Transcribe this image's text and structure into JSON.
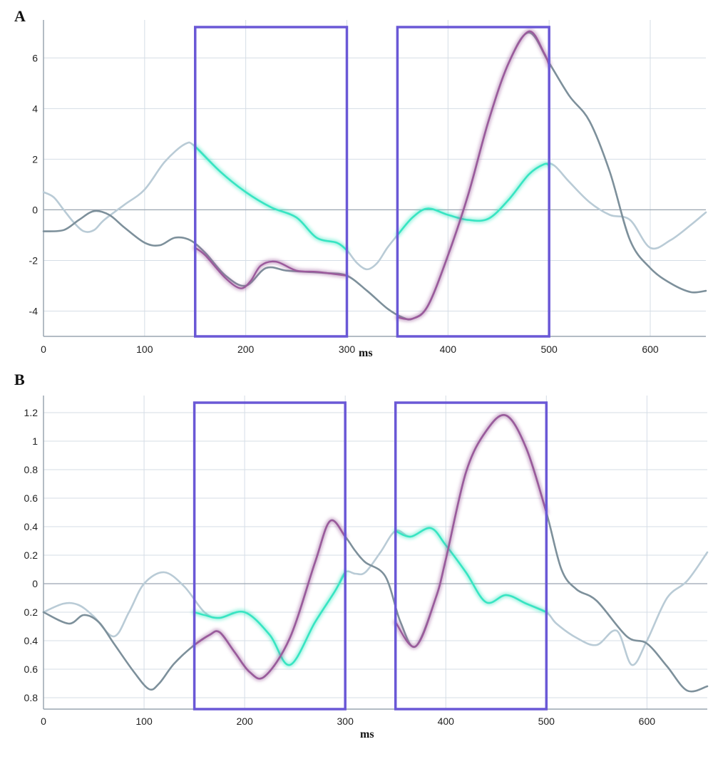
{
  "colors": {
    "grid": "#d5dde6",
    "axis": "#9aa5b0",
    "zero_line": "#9aa5b0",
    "box": "#6a58d6",
    "teal": "#35e6c2",
    "purple": "#9b5a9c",
    "light_gray": "#b9cbd6",
    "dark_gray": "#7d909b"
  },
  "chart_data": [
    {
      "panel_label": "A",
      "type": "line",
      "xlabel": "ms",
      "ylabel": "",
      "xlim": [
        0,
        655
      ],
      "ylim": [
        -5,
        7.5
      ],
      "x_ticks": [
        0,
        100,
        200,
        300,
        400,
        500,
        600
      ],
      "x_tick_labels": [
        "0",
        "100",
        "200",
        "300",
        "400",
        "500",
        "600"
      ],
      "y_ticks": [
        6,
        4,
        2,
        0,
        -2,
        -4
      ],
      "y_tick_labels": [
        "6",
        "4",
        "2",
        "0",
        "-2",
        "-4"
      ],
      "highlight_windows": [
        [
          150,
          300
        ],
        [
          350,
          500
        ]
      ],
      "series": [
        {
          "color_key": "light_gray",
          "x": [
            0,
            10,
            20,
            30,
            40,
            50,
            60,
            80,
            100,
            120,
            140,
            150,
            175,
            200,
            225,
            250,
            270,
            290,
            300,
            310,
            320,
            330,
            340,
            350,
            365,
            380,
            400,
            420,
            440,
            460,
            480,
            495,
            505,
            520,
            540,
            560,
            580,
            600,
            620,
            640,
            655
          ],
          "y": [
            0.7,
            0.5,
            0,
            -0.5,
            -0.85,
            -0.8,
            -0.4,
            0.2,
            0.8,
            1.9,
            2.6,
            2.5,
            1.5,
            0.7,
            0.1,
            -0.3,
            -1.1,
            -1.3,
            -1.6,
            -2.1,
            -2.35,
            -2.1,
            -1.5,
            -1.0,
            -0.3,
            0.05,
            -0.2,
            -0.4,
            -0.35,
            0.4,
            1.4,
            1.8,
            1.75,
            1.1,
            0.3,
            -0.2,
            -0.4,
            -1.5,
            -1.2,
            -0.6,
            -0.1
          ]
        },
        {
          "color_key": "dark_gray",
          "x": [
            0,
            20,
            35,
            50,
            65,
            80,
            100,
            115,
            130,
            145,
            160,
            180,
            200,
            220,
            240,
            260,
            280,
            300,
            320,
            340,
            355,
            365,
            380,
            400,
            420,
            440,
            460,
            480,
            500,
            520,
            540,
            560,
            580,
            600,
            620,
            640,
            655
          ],
          "y": [
            -0.85,
            -0.8,
            -0.4,
            -0.05,
            -0.2,
            -0.7,
            -1.3,
            -1.4,
            -1.1,
            -1.2,
            -1.7,
            -2.6,
            -3.0,
            -2.3,
            -2.4,
            -2.45,
            -2.5,
            -2.6,
            -3.2,
            -3.9,
            -4.25,
            -4.3,
            -3.8,
            -1.8,
            0.6,
            3.5,
            5.8,
            7.0,
            5.8,
            4.5,
            3.5,
            1.5,
            -1.2,
            -2.3,
            -2.9,
            -3.25,
            -3.2
          ]
        },
        {
          "color_key": "teal",
          "x": [
            150,
            175,
            200,
            225,
            250,
            270,
            290,
            300
          ],
          "y": [
            2.5,
            1.5,
            0.7,
            0.1,
            -0.3,
            -1.1,
            -1.3,
            -1.6
          ],
          "glow": true
        },
        {
          "color_key": "teal",
          "x": [
            350,
            365,
            380,
            400,
            420,
            440,
            460,
            480,
            495,
            500
          ],
          "y": [
            -1.0,
            -0.3,
            0.05,
            -0.2,
            -0.4,
            -0.35,
            0.4,
            1.4,
            1.8,
            1.75
          ],
          "glow": true
        },
        {
          "color_key": "purple",
          "x": [
            150,
            160,
            180,
            195,
            205,
            215,
            230,
            250,
            270,
            290,
            300
          ],
          "y": [
            -1.5,
            -1.8,
            -2.7,
            -3.1,
            -2.8,
            -2.2,
            -2.05,
            -2.4,
            -2.45,
            -2.55,
            -2.6
          ],
          "glow": true
        },
        {
          "color_key": "purple",
          "x": [
            350,
            365,
            380,
            400,
            420,
            440,
            460,
            480,
            495,
            500
          ],
          "y": [
            -4.25,
            -4.3,
            -3.8,
            -1.8,
            0.6,
            3.5,
            5.8,
            7.05,
            6.2,
            5.7
          ],
          "glow": true
        }
      ]
    },
    {
      "panel_label": "B",
      "type": "line",
      "xlabel": "ms",
      "ylabel": "",
      "xlim": [
        0,
        660
      ],
      "ylim": [
        -0.88,
        1.32
      ],
      "x_ticks": [
        0,
        100,
        200,
        300,
        400,
        500,
        600
      ],
      "x_tick_labels": [
        "0",
        "100",
        "200",
        "300",
        "400",
        "500",
        "600"
      ],
      "y_ticks": [
        1.2,
        1.0,
        0.8,
        0.6,
        0.4,
        0.2,
        0,
        -0.2,
        -0.4,
        -0.6,
        -0.8
      ],
      "y_tick_labels": [
        "1.2",
        "1",
        "0.8",
        "0.6",
        "0.4",
        "0.2",
        "0",
        "0.2",
        "0.4",
        "0.6",
        "0.8"
      ],
      "highlight_windows": [
        [
          150,
          300
        ],
        [
          350,
          500
        ]
      ],
      "series": [
        {
          "color_key": "light_gray",
          "x": [
            0,
            20,
            35,
            50,
            70,
            85,
            100,
            120,
            140,
            160,
            175,
            200,
            225,
            245,
            270,
            290,
            300,
            310,
            320,
            335,
            350,
            365,
            385,
            400,
            420,
            440,
            460,
            480,
            500,
            510,
            530,
            550,
            570,
            585,
            600,
            620,
            640,
            660
          ],
          "y": [
            -0.2,
            -0.14,
            -0.15,
            -0.23,
            -0.37,
            -0.2,
            0.0,
            0.08,
            -0.02,
            -0.2,
            -0.24,
            -0.2,
            -0.36,
            -0.57,
            -0.27,
            -0.05,
            0.08,
            0.07,
            0.08,
            0.22,
            0.37,
            0.33,
            0.39,
            0.27,
            0.08,
            -0.13,
            -0.08,
            -0.14,
            -0.2,
            -0.28,
            -0.38,
            -0.43,
            -0.33,
            -0.57,
            -0.4,
            -0.1,
            0.02,
            0.22
          ]
        },
        {
          "color_key": "dark_gray",
          "x": [
            0,
            25,
            40,
            55,
            70,
            90,
            105,
            115,
            130,
            150,
            165,
            175,
            190,
            205,
            220,
            245,
            270,
            285,
            300,
            310,
            320,
            340,
            355,
            370,
            390,
            400,
            420,
            440,
            460,
            480,
            500,
            515,
            530,
            550,
            580,
            600,
            620,
            640,
            660
          ],
          "y": [
            -0.2,
            -0.28,
            -0.22,
            -0.27,
            -0.42,
            -0.62,
            -0.74,
            -0.7,
            -0.56,
            -0.43,
            -0.36,
            -0.34,
            -0.48,
            -0.62,
            -0.65,
            -0.38,
            0.15,
            0.44,
            0.33,
            0.23,
            0.15,
            0.05,
            -0.27,
            -0.44,
            -0.1,
            0.17,
            0.78,
            1.07,
            1.18,
            0.95,
            0.5,
            0.1,
            -0.04,
            -0.12,
            -0.37,
            -0.42,
            -0.58,
            -0.75,
            -0.72
          ]
        },
        {
          "color_key": "teal",
          "x": [
            150,
            160,
            175,
            200,
            225,
            245,
            270,
            290,
            300
          ],
          "y": [
            -0.2,
            -0.22,
            -0.24,
            -0.2,
            -0.36,
            -0.57,
            -0.27,
            -0.05,
            0.08
          ],
          "glow": true
        },
        {
          "color_key": "teal",
          "x": [
            350,
            365,
            385,
            400,
            420,
            440,
            460,
            480,
            500
          ],
          "y": [
            0.37,
            0.33,
            0.39,
            0.27,
            0.08,
            -0.13,
            -0.08,
            -0.14,
            -0.2
          ],
          "glow": true
        },
        {
          "color_key": "purple",
          "x": [
            150,
            165,
            175,
            190,
            205,
            220,
            245,
            270,
            285,
            300
          ],
          "y": [
            -0.43,
            -0.36,
            -0.34,
            -0.48,
            -0.62,
            -0.65,
            -0.38,
            0.15,
            0.44,
            0.33
          ],
          "glow": true
        },
        {
          "color_key": "purple",
          "x": [
            350,
            370,
            390,
            400,
            420,
            440,
            460,
            480,
            500
          ],
          "y": [
            -0.27,
            -0.44,
            -0.1,
            0.17,
            0.78,
            1.07,
            1.18,
            0.95,
            0.5
          ],
          "glow": true
        }
      ]
    }
  ]
}
